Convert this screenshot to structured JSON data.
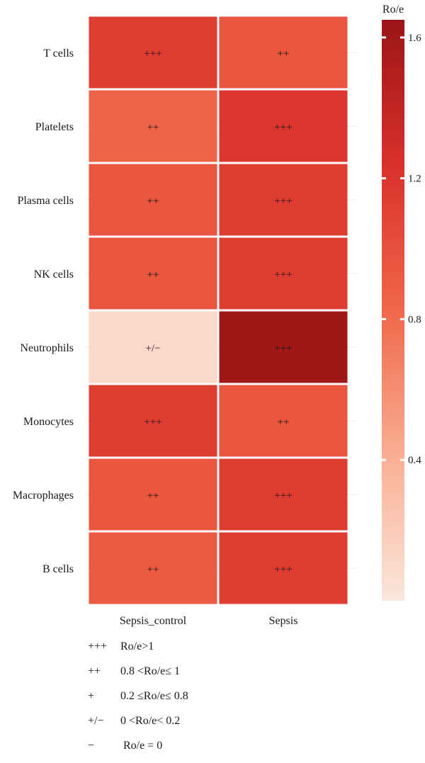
{
  "chart_data": {
    "type": "heatmap",
    "x_categories": [
      "Sepsis_control",
      "Sepsis"
    ],
    "y_categories": [
      "T cells",
      "Platelets",
      "Plasma cells",
      "NK cells",
      "Neutrophils",
      "Monocytes",
      "Macrophages",
      "B cells"
    ],
    "values": [
      [
        1.15,
        0.95
      ],
      [
        0.85,
        1.2
      ],
      [
        0.95,
        1.15
      ],
      [
        0.95,
        1.15
      ],
      [
        0.1,
        1.62
      ],
      [
        1.15,
        0.95
      ],
      [
        0.95,
        1.15
      ],
      [
        0.92,
        1.15
      ]
    ],
    "cell_labels": [
      [
        "+++",
        "++"
      ],
      [
        "++",
        "+++"
      ],
      [
        "++",
        "+++"
      ],
      [
        "++",
        "+++"
      ],
      [
        "+/−",
        "+++"
      ],
      [
        "+++",
        "++"
      ],
      [
        "++",
        "+++"
      ],
      [
        "++",
        "+++"
      ]
    ],
    "colorbar": {
      "title": "Ro/e",
      "ticks": [
        0.4,
        0.8,
        1.2,
        1.6
      ],
      "range": [
        0.0,
        1.65
      ],
      "colors": [
        "#fbe6dc",
        "#f9ae92",
        "#f0674a",
        "#d9302a",
        "#9b1517"
      ]
    }
  },
  "legend_notes": [
    {
      "symbol": "+++",
      "text": "Ro/e>1"
    },
    {
      "symbol": "++",
      "text": "0.8 <Ro/e≤ 1"
    },
    {
      "symbol": "+",
      "text": "0.2 ≤Ro/e≤ 0.8"
    },
    {
      "symbol": "+/−",
      "text": "0 <Ro/e< 0.2"
    },
    {
      "symbol": "−",
      "text": "Ro/e = 0"
    }
  ]
}
